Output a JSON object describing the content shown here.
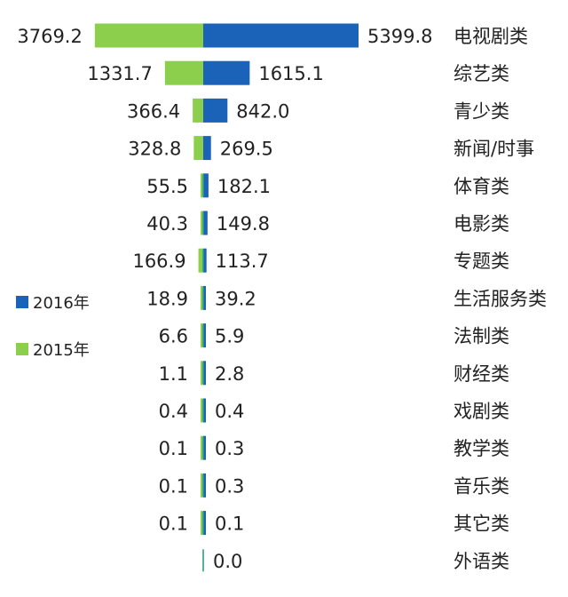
{
  "chart_data": {
    "type": "bar",
    "orientation": "horizontal-diverging",
    "categories": [
      "电视剧类",
      "综艺类",
      "青少类",
      "新闻/时事",
      "体育类",
      "电影类",
      "专题类",
      "生活服务类",
      "法制类",
      "财经类",
      "戏剧类",
      "教学类",
      "音乐类",
      "其它类",
      "外语类"
    ],
    "series": [
      {
        "name": "2016年",
        "color": "#1a63b8",
        "side": "right",
        "values": [
          5399.8,
          1615.1,
          842.0,
          269.5,
          182.1,
          149.8,
          113.7,
          39.2,
          5.9,
          2.8,
          0.4,
          0.3,
          0.3,
          0.1,
          0.0
        ],
        "labels": [
          "5399.8",
          "1615.1",
          "842.0",
          "269.5",
          "182.1",
          "149.8",
          "113.7",
          "39.2",
          "5.9",
          "2.8",
          "0.4",
          "0.3",
          "0.3",
          "0.1",
          "0.0"
        ]
      },
      {
        "name": "2015年",
        "color": "#8ccf4d",
        "side": "left",
        "values": [
          3769.2,
          1331.7,
          366.4,
          328.8,
          55.5,
          40.3,
          166.9,
          18.9,
          6.6,
          1.1,
          0.4,
          0.1,
          0.1,
          0.1,
          null
        ],
        "labels": [
          "3769.2",
          "1331.7",
          "366.4",
          "328.8",
          "55.5",
          "40.3",
          "166.9",
          "18.9",
          "6.6",
          "1.1",
          "0.4",
          "0.1",
          "0.1",
          "0.1",
          ""
        ]
      }
    ],
    "title": "",
    "xlabel": "",
    "ylabel": "",
    "legend_position": "left-middle",
    "grid": false
  }
}
